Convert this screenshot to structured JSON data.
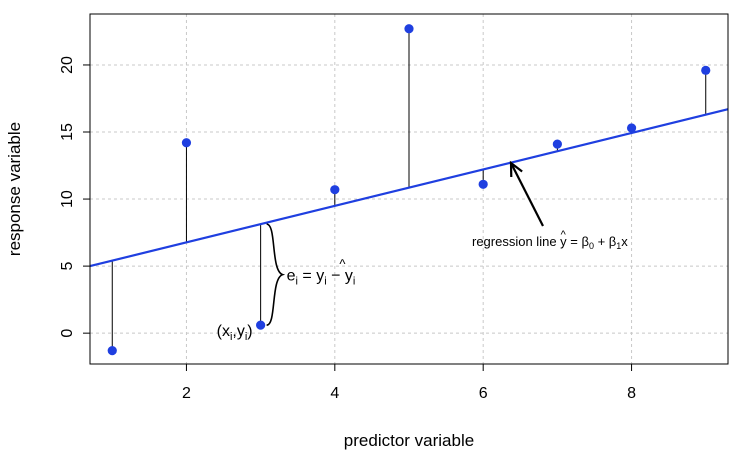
{
  "chart_data": {
    "type": "scatter",
    "title": "",
    "xlabel": "predictor variable",
    "ylabel": "response variable",
    "xlim": [
      0.7,
      9.3
    ],
    "ylim": [
      -2.3,
      23.8
    ],
    "x_ticks": [
      2,
      4,
      6,
      8
    ],
    "y_ticks": [
      0,
      5,
      10,
      15,
      20
    ],
    "grid": true,
    "points": [
      {
        "x": 1,
        "y": -1.3
      },
      {
        "x": 2,
        "y": 14.2
      },
      {
        "x": 3,
        "y": 0.6
      },
      {
        "x": 4,
        "y": 10.7
      },
      {
        "x": 5,
        "y": 22.7
      },
      {
        "x": 6,
        "y": 11.1
      },
      {
        "x": 7,
        "y": 14.1
      },
      {
        "x": 8,
        "y": 15.3
      },
      {
        "x": 9,
        "y": 19.6
      }
    ],
    "regression_line": {
      "intercept": 4.05,
      "slope": 1.36
    },
    "colors": {
      "points": "#1f3fe0",
      "line": "#1f3fe0",
      "residuals": "#000000",
      "grid": "#c8c8c8"
    },
    "annotations": {
      "point_label": {
        "x": 3,
        "y": 0.6,
        "text": "(xi,yi)",
        "main": "(x",
        "sub1": "i",
        "comma": ",y",
        "sub2": "i",
        "close": ")"
      },
      "residual_label": {
        "x": 3,
        "text": "ei = yi − ŷi",
        "e": "e",
        "sub1": "i",
        "eq": " = y",
        "sub2": "i",
        "minus": " − y",
        "hat": "^",
        "sub3": "i"
      },
      "regression_label": {
        "text": "regression line ŷ = β0 + β1x",
        "prefix": "regression line ",
        "y": "y",
        "hat": "^",
        "eq": " = β",
        "sub0": "0",
        "plus": " + β",
        "sub1": "1",
        "x": "x"
      }
    }
  }
}
